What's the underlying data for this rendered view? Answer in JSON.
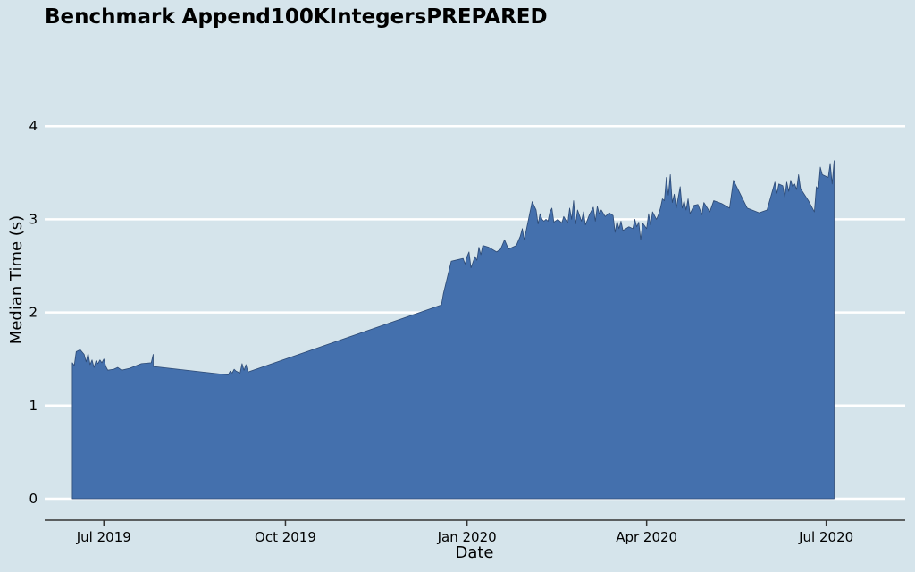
{
  "chart_data": {
    "type": "area",
    "title": "Benchmark Append100KIntegersPREPARED",
    "xlabel": "Date",
    "ylabel": "Median Time (s)",
    "x_axis_type": "date",
    "xlim": [
      "2019-06-01",
      "2020-08-10"
    ],
    "ylim": [
      0,
      4.3
    ],
    "yticks": [
      0,
      1,
      2,
      3,
      4
    ],
    "xticks": [
      {
        "date": "2019-07-01",
        "label": "Jul 2019"
      },
      {
        "date": "2019-10-01",
        "label": "Oct 2019"
      },
      {
        "date": "2020-01-01",
        "label": "Jan 2020"
      },
      {
        "date": "2020-04-01",
        "label": "Apr 2020"
      },
      {
        "date": "2020-07-01",
        "label": "Jul 2020"
      }
    ],
    "grid": "horizontal",
    "colors": {
      "fill": "#4470ad",
      "edge": "#2d4a75",
      "grid": "#ffffff",
      "background": "#d5e4eb",
      "axis": "#333333"
    },
    "series": [
      {
        "points": [
          [
            "2019-06-15",
            1.46
          ],
          [
            "2019-06-16",
            1.43
          ],
          [
            "2019-06-17",
            1.58
          ],
          [
            "2019-06-19",
            1.6
          ],
          [
            "2019-06-21",
            1.55
          ],
          [
            "2019-06-22",
            1.47
          ],
          [
            "2019-06-23",
            1.56
          ],
          [
            "2019-06-24",
            1.44
          ],
          [
            "2019-06-25",
            1.49
          ],
          [
            "2019-06-26",
            1.41
          ],
          [
            "2019-06-27",
            1.48
          ],
          [
            "2019-06-28",
            1.45
          ],
          [
            "2019-06-29",
            1.49
          ],
          [
            "2019-06-30",
            1.46
          ],
          [
            "2019-07-01",
            1.5
          ],
          [
            "2019-07-02",
            1.42
          ],
          [
            "2019-07-03",
            1.38
          ],
          [
            "2019-07-06",
            1.39
          ],
          [
            "2019-07-08",
            1.41
          ],
          [
            "2019-07-10",
            1.38
          ],
          [
            "2019-07-14",
            1.4
          ],
          [
            "2019-07-20",
            1.45
          ],
          [
            "2019-07-25",
            1.46
          ],
          [
            "2019-07-26",
            1.55
          ],
          [
            "2019-07-26",
            1.42
          ],
          [
            "2019-08-20",
            1.36
          ],
          [
            "2019-09-02",
            1.33
          ],
          [
            "2019-09-03",
            1.37
          ],
          [
            "2019-09-04",
            1.35
          ],
          [
            "2019-09-05",
            1.39
          ],
          [
            "2019-09-06",
            1.37
          ],
          [
            "2019-09-08",
            1.35
          ],
          [
            "2019-09-09",
            1.45
          ],
          [
            "2019-09-10",
            1.38
          ],
          [
            "2019-09-11",
            1.44
          ],
          [
            "2019-09-12",
            1.36
          ],
          [
            "2019-12-19",
            2.08
          ],
          [
            "2019-12-20",
            2.2
          ],
          [
            "2019-12-24",
            2.55
          ],
          [
            "2019-12-30",
            2.58
          ],
          [
            "2019-12-31",
            2.52
          ],
          [
            "2020-01-01",
            2.6
          ],
          [
            "2020-01-02",
            2.65
          ],
          [
            "2020-01-03",
            2.48
          ],
          [
            "2020-01-05",
            2.6
          ],
          [
            "2020-01-06",
            2.56
          ],
          [
            "2020-01-07",
            2.7
          ],
          [
            "2020-01-08",
            2.62
          ],
          [
            "2020-01-09",
            2.72
          ],
          [
            "2020-01-12",
            2.7
          ],
          [
            "2020-01-16",
            2.65
          ],
          [
            "2020-01-18",
            2.68
          ],
          [
            "2020-01-20",
            2.78
          ],
          [
            "2020-01-22",
            2.68
          ],
          [
            "2020-01-26",
            2.72
          ],
          [
            "2020-01-28",
            2.82
          ],
          [
            "2020-01-29",
            2.9
          ],
          [
            "2020-01-30",
            2.78
          ],
          [
            "2020-02-03",
            3.19
          ],
          [
            "2020-02-05",
            3.1
          ],
          [
            "2020-02-06",
            2.95
          ],
          [
            "2020-02-07",
            3.06
          ],
          [
            "2020-02-08",
            3.0
          ],
          [
            "2020-02-09",
            2.98
          ],
          [
            "2020-02-10",
            3.0
          ],
          [
            "2020-02-11",
            2.98
          ],
          [
            "2020-02-12",
            3.08
          ],
          [
            "2020-02-13",
            3.12
          ],
          [
            "2020-02-14",
            2.97
          ],
          [
            "2020-02-16",
            3.0
          ],
          [
            "2020-02-18",
            2.96
          ],
          [
            "2020-02-19",
            3.03
          ],
          [
            "2020-02-21",
            2.96
          ],
          [
            "2020-02-22",
            3.12
          ],
          [
            "2020-02-23",
            3.0
          ],
          [
            "2020-02-24",
            3.2
          ],
          [
            "2020-02-25",
            2.95
          ],
          [
            "2020-02-26",
            3.1
          ],
          [
            "2020-02-27",
            3.04
          ],
          [
            "2020-02-28",
            2.98
          ],
          [
            "2020-02-29",
            3.08
          ],
          [
            "2020-03-01",
            2.94
          ],
          [
            "2020-03-03",
            3.05
          ],
          [
            "2020-03-05",
            3.13
          ],
          [
            "2020-03-06",
            2.98
          ],
          [
            "2020-03-07",
            3.14
          ],
          [
            "2020-03-08",
            3.06
          ],
          [
            "2020-03-09",
            3.1
          ],
          [
            "2020-03-11",
            3.03
          ],
          [
            "2020-03-13",
            3.07
          ],
          [
            "2020-03-15",
            3.04
          ],
          [
            "2020-03-16",
            2.86
          ],
          [
            "2020-03-17",
            2.98
          ],
          [
            "2020-03-18",
            2.9
          ],
          [
            "2020-03-19",
            2.98
          ],
          [
            "2020-03-20",
            2.88
          ],
          [
            "2020-03-23",
            2.92
          ],
          [
            "2020-03-25",
            2.9
          ],
          [
            "2020-03-26",
            3.0
          ],
          [
            "2020-03-27",
            2.92
          ],
          [
            "2020-03-28",
            2.97
          ],
          [
            "2020-03-29",
            2.78
          ],
          [
            "2020-03-30",
            2.96
          ],
          [
            "2020-04-01",
            2.9
          ],
          [
            "2020-04-02",
            3.06
          ],
          [
            "2020-04-03",
            2.94
          ],
          [
            "2020-04-04",
            3.08
          ],
          [
            "2020-04-06",
            3.0
          ],
          [
            "2020-04-07",
            3.05
          ],
          [
            "2020-04-08",
            3.12
          ],
          [
            "2020-04-09",
            3.22
          ],
          [
            "2020-04-10",
            3.2
          ],
          [
            "2020-04-11",
            3.45
          ],
          [
            "2020-04-12",
            3.26
          ],
          [
            "2020-04-13",
            3.48
          ],
          [
            "2020-04-14",
            3.18
          ],
          [
            "2020-04-15",
            3.27
          ],
          [
            "2020-04-16",
            3.12
          ],
          [
            "2020-04-18",
            3.35
          ],
          [
            "2020-04-19",
            3.12
          ],
          [
            "2020-04-20",
            3.2
          ],
          [
            "2020-04-21",
            3.1
          ],
          [
            "2020-04-22",
            3.22
          ],
          [
            "2020-04-23",
            3.06
          ],
          [
            "2020-04-25",
            3.15
          ],
          [
            "2020-04-27",
            3.16
          ],
          [
            "2020-04-29",
            3.05
          ],
          [
            "2020-04-30",
            3.18
          ],
          [
            "2020-05-03",
            3.08
          ],
          [
            "2020-05-05",
            3.2
          ],
          [
            "2020-05-09",
            3.17
          ],
          [
            "2020-05-13",
            3.12
          ],
          [
            "2020-05-15",
            3.42
          ],
          [
            "2020-05-22",
            3.12
          ],
          [
            "2020-05-28",
            3.07
          ],
          [
            "2020-06-01",
            3.1
          ],
          [
            "2020-06-03",
            3.25
          ],
          [
            "2020-06-05",
            3.4
          ],
          [
            "2020-06-06",
            3.28
          ],
          [
            "2020-06-07",
            3.38
          ],
          [
            "2020-06-09",
            3.36
          ],
          [
            "2020-06-10",
            3.24
          ],
          [
            "2020-06-11",
            3.4
          ],
          [
            "2020-06-12",
            3.3
          ],
          [
            "2020-06-13",
            3.42
          ],
          [
            "2020-06-14",
            3.35
          ],
          [
            "2020-06-15",
            3.38
          ],
          [
            "2020-06-16",
            3.32
          ],
          [
            "2020-06-17",
            3.48
          ],
          [
            "2020-06-18",
            3.33
          ],
          [
            "2020-06-22",
            3.2
          ],
          [
            "2020-06-25",
            3.08
          ],
          [
            "2020-06-26",
            3.35
          ],
          [
            "2020-06-27",
            3.32
          ],
          [
            "2020-06-28",
            3.56
          ],
          [
            "2020-06-29",
            3.48
          ],
          [
            "2020-07-02",
            3.45
          ],
          [
            "2020-07-03",
            3.6
          ],
          [
            "2020-07-04",
            3.38
          ],
          [
            "2020-07-05",
            3.63
          ]
        ]
      }
    ]
  }
}
